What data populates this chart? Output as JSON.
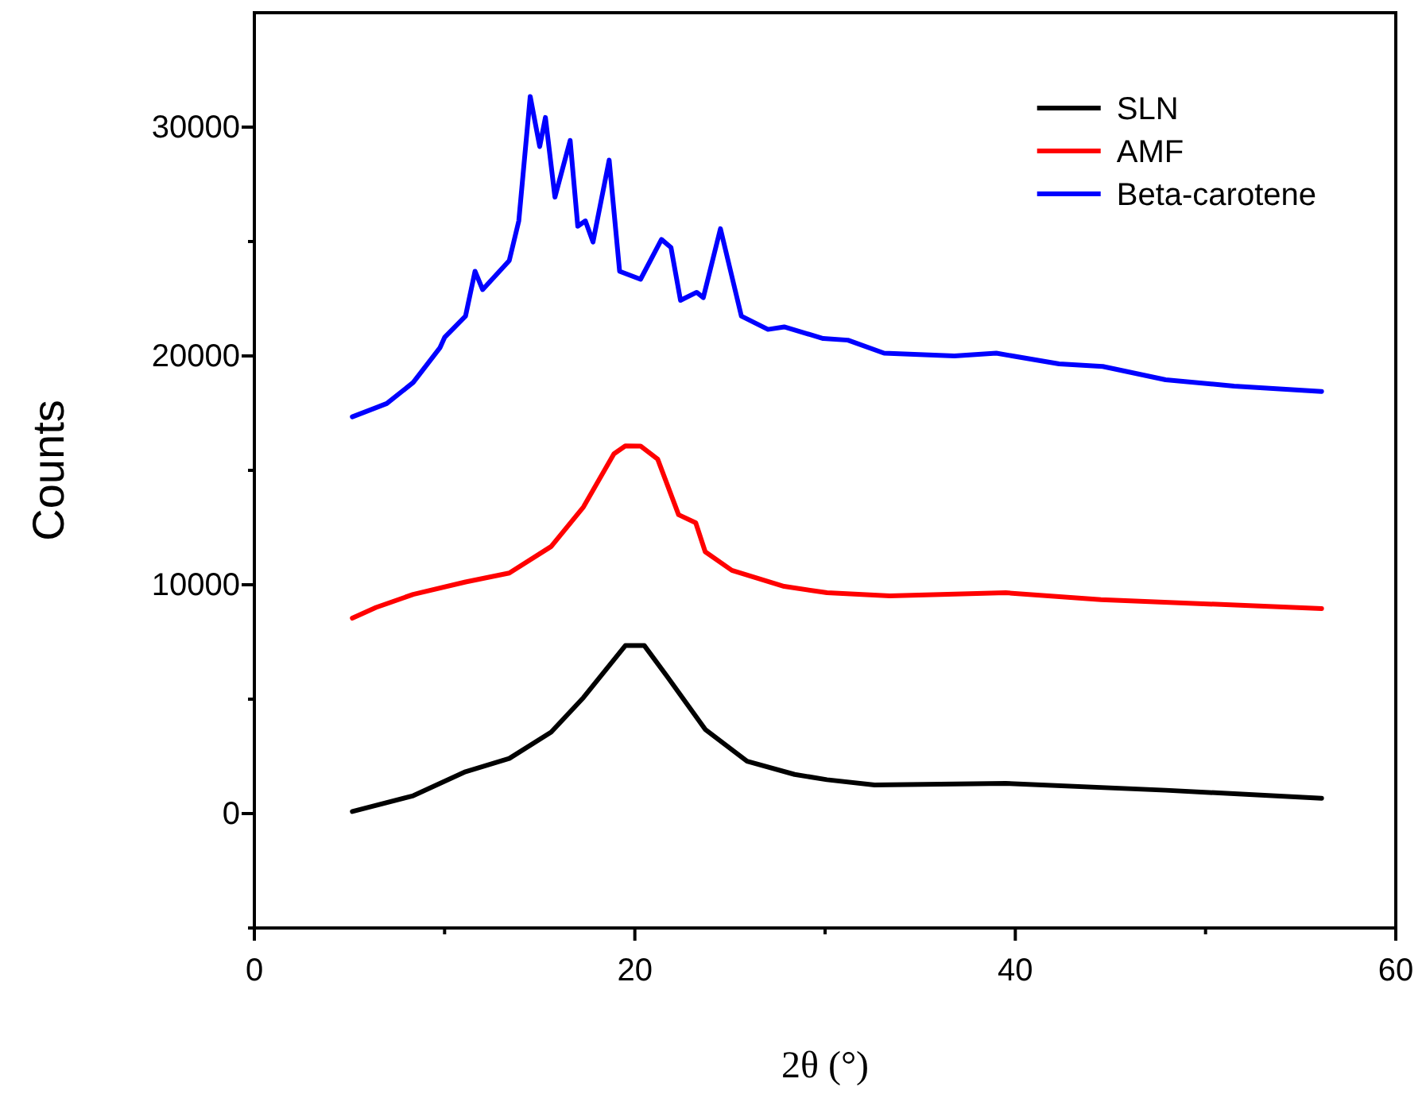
{
  "chart_data": {
    "type": "line",
    "xlabel": "2θ (°)",
    "ylabel": "Counts",
    "xlim": [
      0,
      60
    ],
    "ylim": [
      -5000,
      35000
    ],
    "xticks": [
      0,
      {
        "value": 10,
        "label": null
      },
      20,
      {
        "value": 30,
        "label": null
      },
      40,
      {
        "value": 50,
        "label": null
      },
      60
    ],
    "yticks": [
      {
        "value": -5000,
        "label": null
      },
      0,
      {
        "value": 5000,
        "label": null
      },
      10000,
      {
        "value": 15000,
        "label": null
      },
      20000,
      {
        "value": 25000,
        "label": null
      },
      30000
    ],
    "legend": "top right",
    "grid": false,
    "marker": "none",
    "line_style": "solid",
    "series": [
      {
        "name": "SLN",
        "color": "#000000",
        "x": [
          5.15,
          8.35,
          11.1,
          13.4,
          15.6,
          17.3,
          19.5,
          20.5,
          21.7,
          23.7,
          25.9,
          28.4,
          30.1,
          32.6,
          39.5,
          47.9,
          56.1
        ],
        "values": [
          90,
          780,
          1830,
          2410,
          3560,
          5070,
          7340,
          7340,
          5990,
          3680,
          2290,
          1710,
          1480,
          1250,
          1320,
          1020,
          670
        ]
      },
      {
        "name": "AMF",
        "color": "#ff0000",
        "x": [
          5.15,
          6.4,
          8.35,
          11.1,
          13.4,
          15.6,
          17.3,
          18.9,
          19.5,
          20.3,
          21.2,
          22.3,
          23.2,
          23.7,
          25.1,
          27.85,
          30.1,
          33.4,
          39.5,
          44.5,
          56.1
        ],
        "values": [
          8540,
          9010,
          9580,
          10120,
          10510,
          11670,
          13400,
          15720,
          16070,
          16060,
          15490,
          13060,
          12710,
          11440,
          10630,
          9930,
          9650,
          9510,
          9650,
          9350,
          8960
        ]
      },
      {
        "name": "Beta-carotene",
        "color": "#0000ff",
        "x": [
          5.15,
          6.96,
          8.35,
          9.75,
          10.0,
          11.1,
          11.6,
          12.0,
          13.4,
          13.9,
          14.5,
          15.0,
          15.3,
          15.8,
          16.6,
          17.0,
          17.4,
          17.8,
          18.65,
          19.2,
          20.3,
          21.4,
          21.9,
          22.4,
          23.25,
          23.6,
          24.5,
          25.6,
          27.0,
          27.85,
          29.9,
          31.2,
          33.1,
          36.8,
          39.0,
          42.3,
          44.6,
          47.9,
          51.5,
          56.1
        ],
        "values": [
          17340,
          17920,
          18840,
          20350,
          20810,
          21740,
          23700,
          22900,
          24170,
          25900,
          31340,
          29150,
          30420,
          26940,
          29420,
          25670,
          25900,
          24980,
          28560,
          23700,
          23350,
          25090,
          24740,
          22430,
          22780,
          22550,
          25560,
          21740,
          21160,
          21270,
          20760,
          20690,
          20120,
          20000,
          20120,
          19650,
          19540,
          18960,
          18680,
          18450
        ]
      }
    ]
  }
}
